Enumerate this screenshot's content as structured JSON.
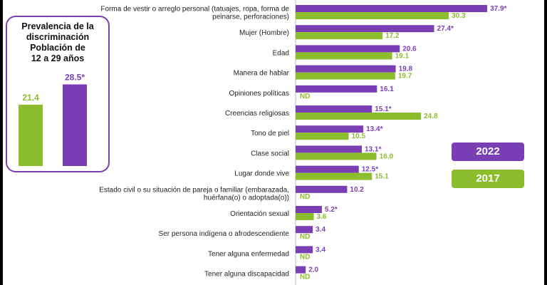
{
  "panel": {
    "title_lines": [
      "Prevalencia de la",
      "discriminación",
      "Población de",
      "12 a 29 años"
    ]
  },
  "legend": [
    {
      "label": "2022",
      "color": "#7b3fb5"
    },
    {
      "label": "2017",
      "color": "#8bbd2c"
    }
  ],
  "chart_data": [
    {
      "type": "bar",
      "orientation": "vertical",
      "categories": [
        "2017",
        "2022"
      ],
      "values": [
        21.4,
        28.5
      ],
      "value_labels": [
        "21.4",
        "28.5*"
      ],
      "colors": [
        "#8bbd2c",
        "#7b3fb5"
      ]
    },
    {
      "type": "bar",
      "orientation": "horizontal",
      "series": [
        {
          "name": "2022",
          "color": "#7b3fb5"
        },
        {
          "name": "2017",
          "color": "#8bbd2c"
        }
      ],
      "categories": [
        {
          "lines": [
            "Forma de vestir o arreglo personal (tatuajes, ropa, forma de",
            "peinarse, perforaciones)"
          ],
          "v2022": 37.9,
          "l2022": "37.9*",
          "v2017": 30.3,
          "l2017": "30.3"
        },
        {
          "lines": [
            "Mujer (Hombre)"
          ],
          "v2022": 27.4,
          "l2022": "27.4*",
          "v2017": 17.2,
          "l2017": "17.2"
        },
        {
          "lines": [
            "Edad"
          ],
          "v2022": 20.6,
          "l2022": "20.6",
          "v2017": 19.1,
          "l2017": "19.1"
        },
        {
          "lines": [
            "Manera de hablar"
          ],
          "v2022": 19.8,
          "l2022": "19.8",
          "v2017": 19.7,
          "l2017": "19.7"
        },
        {
          "lines": [
            "Opiniones políticas"
          ],
          "v2022": 16.1,
          "l2022": "16.1",
          "v2017": null,
          "l2017": "ND"
        },
        {
          "lines": [
            "Creencias religiosas"
          ],
          "v2022": 15.1,
          "l2022": "15.1*",
          "v2017": 24.8,
          "l2017": "24.8"
        },
        {
          "lines": [
            "Tono de piel"
          ],
          "v2022": 13.4,
          "l2022": "13.4*",
          "v2017": 10.5,
          "l2017": "10.5"
        },
        {
          "lines": [
            "Clase social"
          ],
          "v2022": 13.1,
          "l2022": "13.1*",
          "v2017": 16.0,
          "l2017": "16.0"
        },
        {
          "lines": [
            "Lugar donde vive"
          ],
          "v2022": 12.5,
          "l2022": "12.5*",
          "v2017": 15.1,
          "l2017": "15.1"
        },
        {
          "lines": [
            "Estado civil o su situación de pareja o familiar (embarazada,",
            "huérfana(o) o adoptada(o))"
          ],
          "v2022": 10.2,
          "l2022": "10.2",
          "v2017": null,
          "l2017": "ND"
        },
        {
          "lines": [
            "Orientación sexual"
          ],
          "v2022": 5.2,
          "l2022": "5.2*",
          "v2017": 3.6,
          "l2017": "3.6"
        },
        {
          "lines": [
            "Ser persona indígena o afrodescendiente"
          ],
          "v2022": 3.4,
          "l2022": "3.4",
          "v2017": null,
          "l2017": "ND"
        },
        {
          "lines": [
            "Tener alguna enfermedad"
          ],
          "v2022": 3.4,
          "l2022": "3.4",
          "v2017": null,
          "l2017": "ND"
        },
        {
          "lines": [
            "Tener alguna discapacidad"
          ],
          "v2022": 2.0,
          "l2022": "2.0",
          "v2017": null,
          "l2017": "ND"
        }
      ]
    }
  ]
}
